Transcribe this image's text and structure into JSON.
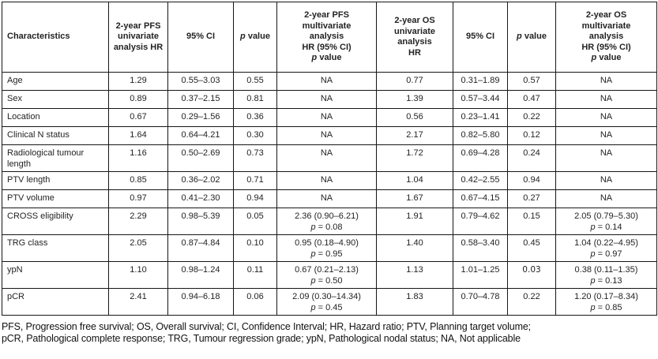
{
  "colors": {
    "border": "#161616",
    "text": "#232323",
    "background": "#ffffff"
  },
  "table": {
    "headers": [
      {
        "id": "characteristics",
        "label": "Characteristics",
        "align": "left"
      },
      {
        "id": "pfs-univariate-hr",
        "label": "2-year PFS\nunivariate\nanalysis HR"
      },
      {
        "id": "pfs-ci",
        "label": "95% CI"
      },
      {
        "id": "pfs-p-value",
        "label": "p value"
      },
      {
        "id": "pfs-multivariate",
        "label": "2-year PFS\nmultivariate\nanalysis\nHR (95% CI)\np value"
      },
      {
        "id": "os-univariate-hr",
        "label": "2-year OS\nunivariate\nanalysis\nHR"
      },
      {
        "id": "os-ci",
        "label": "95% CI"
      },
      {
        "id": "os-p-value",
        "label": "p value"
      },
      {
        "id": "os-multivariate",
        "label": "2-year OS\nmultivariate\nanalysis\nHR (95% CI)\np value"
      }
    ],
    "rows": [
      {
        "characteristic": "Age",
        "cells": [
          "1.29",
          "0.55–3.03",
          "0.55",
          "NA",
          "0.77",
          "0.31–1.89",
          "0.57",
          "NA"
        ]
      },
      {
        "characteristic": "Sex",
        "cells": [
          "0.89",
          "0.37–2.15",
          "0.81",
          "NA",
          "1.39",
          "0.57–3.44",
          "0.47",
          "NA"
        ]
      },
      {
        "characteristic": "Location",
        "cells": [
          "0.67",
          "0.29–1.56",
          "0.36",
          "NA",
          "0.56",
          "0.23–1.41",
          "0.22",
          "NA"
        ]
      },
      {
        "characteristic": "Clinical N status",
        "cells": [
          "1.64",
          "0.64–4.21",
          "0.30",
          "NA",
          "2.17",
          "0.82–5.80",
          "0.12",
          "NA"
        ]
      },
      {
        "characteristic": "Radiological tumour length",
        "cells": [
          "1.16",
          "0.50–2.69",
          "0.73",
          "NA",
          "1.72",
          "0.69–4.28",
          "0.24",
          "NA"
        ]
      },
      {
        "characteristic": "PTV length",
        "cells": [
          "0.85",
          "0.36–2.02",
          "0.71",
          "NA",
          "1.04",
          "0.42–2.55",
          "0.94",
          "NA"
        ]
      },
      {
        "characteristic": "PTV volume",
        "cells": [
          "0.97",
          "0.41–2.30",
          "0.94",
          "NA",
          "1.67",
          "0.67–4.15",
          "0.27",
          "NA"
        ]
      },
      {
        "characteristic": "CROSS eligibility",
        "cells": [
          "2.29",
          "0.98–5.39",
          "0.05",
          "2.36 (0.90–6.21)\np = 0.08",
          "1.91",
          "0.79–4.62",
          "0.15",
          "2.05 (0.79–5.30)\np = 0.14"
        ]
      },
      {
        "characteristic": "TRG class",
        "cells": [
          "2.05",
          "0.87–4.84",
          "0.10",
          "0.95 (0.18–4.90)\np = 0.95",
          "1.40",
          "0.58–3.40",
          "0.45",
          "1.04 (0.22–4.95)\np = 0.97"
        ]
      },
      {
        "characteristic": "ypN",
        "cells": [
          "1.10",
          "0.98–1.24",
          "0.11",
          "0.67 (0.21–2.13)\np = 0.50",
          "1.13",
          "1.01–1.25",
          "0.03",
          "0.38 (0.11–1.35)\np = 0.13"
        ],
        "alt_font_cells": [
          6
        ]
      },
      {
        "characteristic": "pCR",
        "cells": [
          "2.41",
          "0.94–6.18",
          "0.06",
          "2.09 (0.30–14.34)\np = 0.45",
          "1.83",
          "0.70–4.78",
          "0.22",
          "1.20 (0.17–8.34)\np = 0.85"
        ]
      }
    ]
  },
  "footnote": {
    "lines": [
      "PFS, Progression free survival; OS, Overall survival; CI, Confidence Interval; HR, Hazard ratio; PTV, Planning target volume;",
      "pCR, Pathological complete response; TRG, Tumour regression grade; ypN, Pathological nodal status; NA, Not applicable"
    ]
  }
}
